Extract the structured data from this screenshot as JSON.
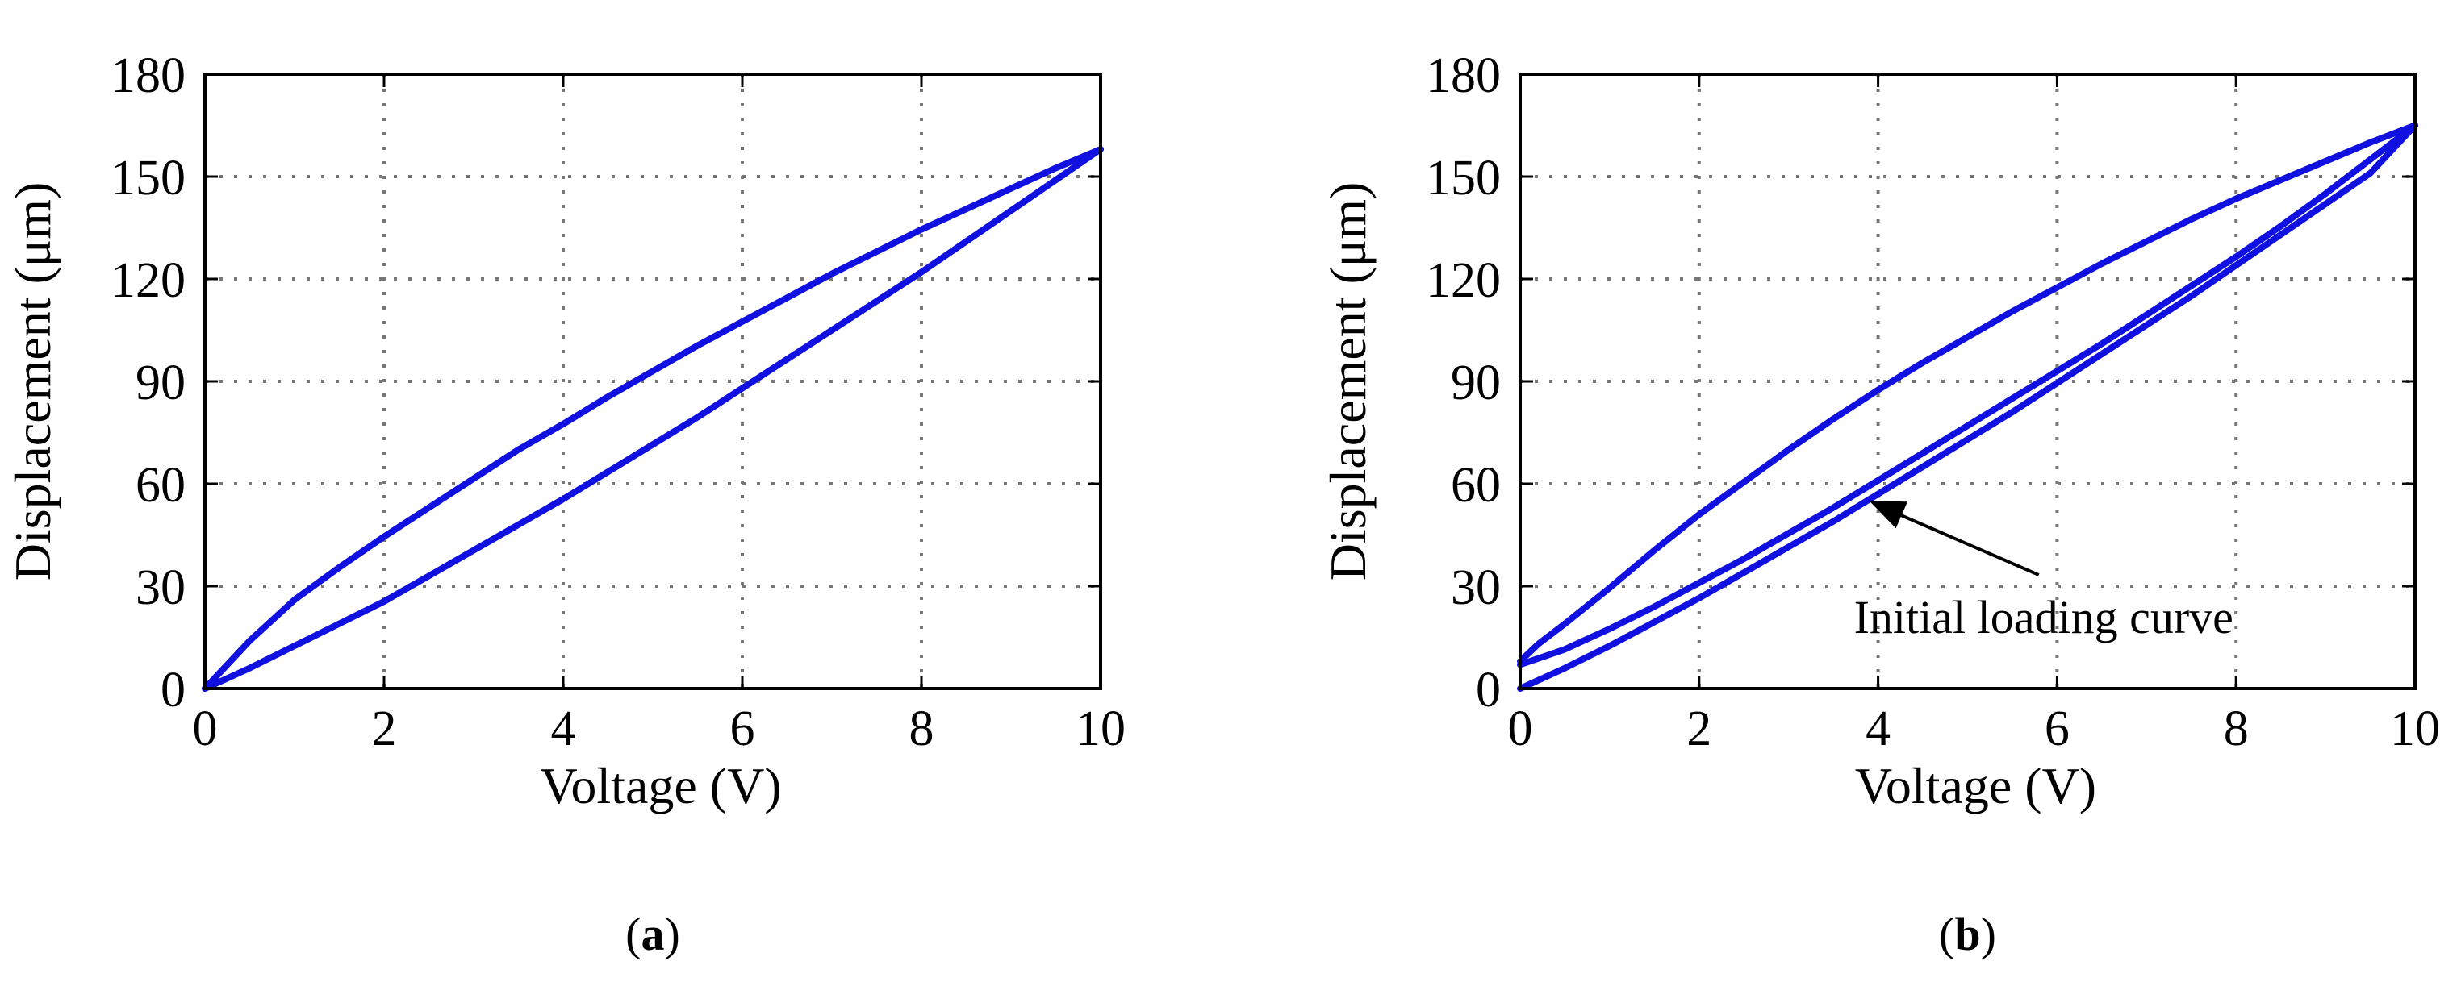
{
  "chart_data": [
    {
      "type": "line",
      "panel_label": "a",
      "xlabel": "Voltage (V)",
      "ylabel": "Displacement (μm)",
      "xlim": [
        0,
        10
      ],
      "ylim": [
        0,
        180
      ],
      "xticks": [
        "0",
        "2",
        "4",
        "6",
        "8",
        "10"
      ],
      "yticks": [
        "0",
        "30",
        "60",
        "90",
        "120",
        "150",
        "180"
      ],
      "grid": true,
      "line_color": "#1010e0",
      "series": [
        {
          "segment": "ascending",
          "x": [
            0,
            0.5,
            1,
            1.5,
            2,
            2.5,
            3,
            3.5,
            4,
            4.5,
            5,
            5.5,
            6,
            6.5,
            7,
            7.5,
            8,
            8.5,
            9,
            9.5,
            10
          ],
          "y": [
            0,
            6,
            12.5,
            19,
            25.5,
            33,
            40.5,
            48,
            55.5,
            63.5,
            71.5,
            79.5,
            88,
            96.5,
            105,
            113.5,
            122,
            131,
            140,
            149,
            158
          ]
        },
        {
          "segment": "descending",
          "x": [
            10,
            9.5,
            9,
            8.5,
            8,
            7.5,
            7,
            6.5,
            6,
            5.5,
            5,
            4.5,
            4,
            3.5,
            3,
            2.5,
            2,
            1.5,
            1,
            0.5,
            0
          ],
          "y": [
            158,
            152.5,
            146.5,
            140.5,
            134.5,
            128,
            121.5,
            114.5,
            107.5,
            100.5,
            93,
            85.5,
            77.5,
            70,
            61.5,
            53,
            44.5,
            35.5,
            26,
            14,
            0
          ]
        }
      ]
    },
    {
      "type": "line",
      "panel_label": "b",
      "xlabel": "Voltage (V)",
      "ylabel": "Displacement (μm)",
      "xlim": [
        0,
        10
      ],
      "ylim": [
        0,
        180
      ],
      "xticks": [
        "0",
        "2",
        "4",
        "6",
        "8",
        "10"
      ],
      "yticks": [
        "0",
        "30",
        "60",
        "90",
        "120",
        "150",
        "180"
      ],
      "grid": true,
      "line_color": "#1010e0",
      "annotation": {
        "text": "Initial loading curve",
        "point_to": [
          3.9,
          55
        ],
        "text_at": [
          5.85,
          21
        ]
      },
      "series": [
        {
          "segment": "initial",
          "x": [
            0,
            0.5,
            1,
            1.5,
            2,
            2.5,
            3,
            3.5,
            4,
            4.5,
            5,
            5.5,
            6,
            6.5,
            7,
            7.5,
            8,
            8.5,
            9,
            9.5,
            10
          ],
          "y": [
            0,
            6,
            12.5,
            19.5,
            26.5,
            34,
            41.5,
            49,
            57,
            65,
            73,
            81,
            89.5,
            98,
            106.5,
            115,
            124,
            133,
            142,
            151,
            165
          ]
        },
        {
          "segment": "ascending",
          "x": [
            0,
            0.5,
            1,
            1.5,
            2,
            2.5,
            3,
            3.5,
            4,
            4.5,
            5,
            5.5,
            6,
            6.5,
            7,
            7.5,
            8,
            8.5,
            9,
            9.5,
            10
          ],
          "y": [
            7,
            11.5,
            17.5,
            24,
            31,
            38,
            45.5,
            53,
            61,
            69,
            77,
            85,
            93,
            101,
            109.5,
            118,
            126.5,
            135.5,
            145,
            155,
            165
          ]
        },
        {
          "segment": "descending",
          "x": [
            10,
            9.5,
            9,
            8.5,
            8,
            7.5,
            7,
            6.5,
            6,
            5.5,
            5,
            4.5,
            4,
            3.5,
            3,
            2.5,
            2,
            1.5,
            1,
            0.5,
            0.2,
            0
          ],
          "y": [
            165,
            160,
            154.5,
            149,
            143.5,
            137.5,
            131,
            124.5,
            117.5,
            110.5,
            103,
            95.5,
            87.5,
            79,
            70,
            60.5,
            51,
            40.5,
            29.5,
            19,
            13,
            8
          ]
        }
      ]
    }
  ]
}
